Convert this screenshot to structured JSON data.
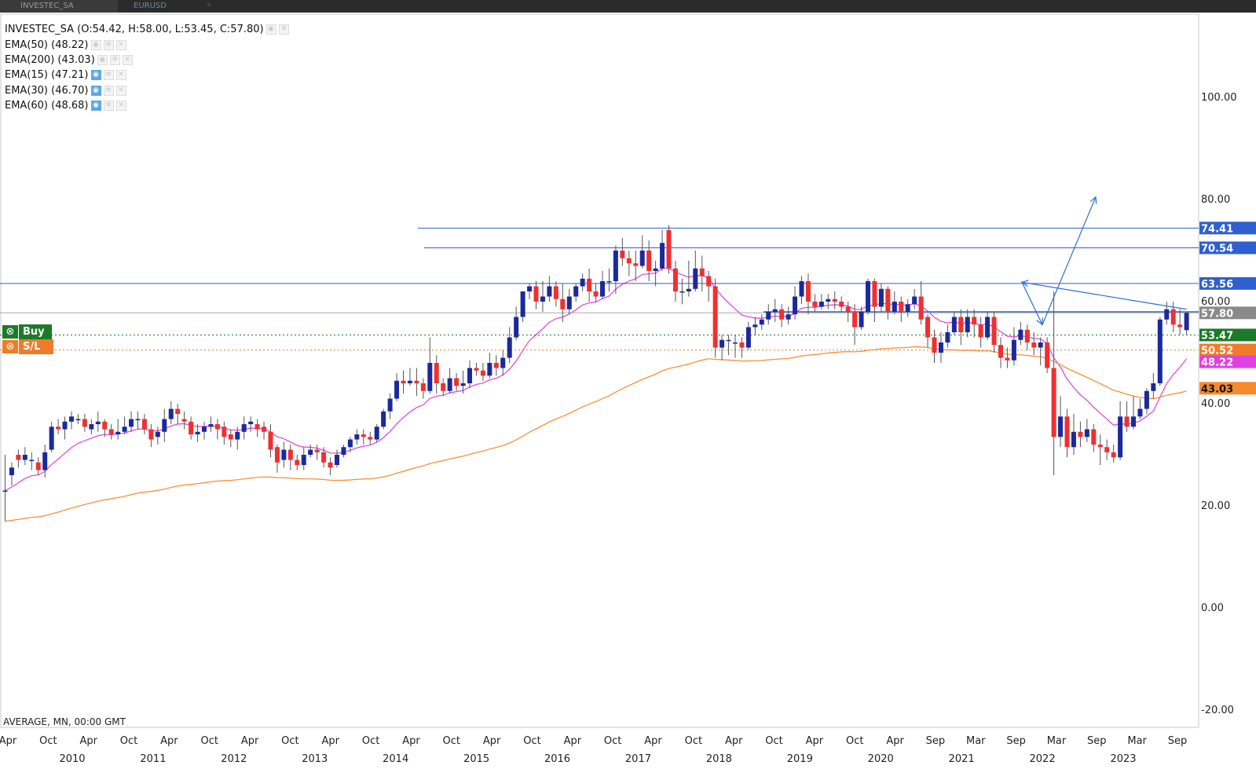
{
  "tabs": [
    {
      "label": "INVESTEC_SA",
      "active": true
    },
    {
      "label": "EURUSD",
      "active": false
    }
  ],
  "legend": {
    "main": "INVESTEC_SA (O:54.42, H:58.00, L:53.45, C:57.80)",
    "indicators": [
      {
        "label": "EMA(50) (48.22)",
        "eye_on": false,
        "color": "#e040e0"
      },
      {
        "label": "EMA(200) (43.03)",
        "eye_on": false,
        "color": "#f58a2e"
      },
      {
        "label": "EMA(15) (47.21)",
        "eye_on": true
      },
      {
        "label": "EMA(30) (46.70)",
        "eye_on": true
      },
      {
        "label": "EMA(60) (48.68)",
        "eye_on": true
      }
    ]
  },
  "trade_widget": {
    "buy_label": "Buy",
    "sl_label": "S/L",
    "buy_color": "#1d7a28",
    "sl_color": "#f07c2a"
  },
  "status_line": "AVERAGE, MN, 00:00 GMT",
  "chart_data": {
    "type": "candlestick",
    "symbol": "INVESTEC_SA",
    "timeframe": "MN",
    "ylim": [
      -20,
      120
    ],
    "y_ticks": [
      "100.00",
      "80.00",
      "40.00",
      "20.00",
      "0.00",
      "-20.00"
    ],
    "x_month_labels": [
      "Apr",
      "Oct",
      "Apr",
      "Oct",
      "Apr",
      "Oct",
      "Apr",
      "Oct",
      "Apr",
      "Oct",
      "Apr",
      "Oct",
      "Apr",
      "Oct",
      "Apr",
      "Oct",
      "Apr",
      "Oct",
      "Apr",
      "Oct",
      "Apr",
      "Oct",
      "Apr",
      "Sep",
      "Mar",
      "Sep",
      "Mar",
      "Sep",
      "Mar",
      "Sep"
    ],
    "x_year_labels": [
      "2010",
      "2011",
      "2012",
      "2013",
      "2014",
      "2015",
      "2016",
      "2017",
      "2018",
      "2019",
      "2020",
      "2021",
      "2022",
      "2023"
    ],
    "up_color": "#1a2a9c",
    "down_color": "#f03030",
    "candles": [
      [
        23.0,
        23.0,
        17.0,
        30.0
      ],
      [
        26.0,
        27.5,
        24.0,
        28.5
      ],
      [
        30.0,
        29.0,
        27.5,
        31.0
      ],
      [
        29.0,
        30.0,
        28.0,
        31.5
      ],
      [
        29.0,
        29.0,
        27.0,
        30.5
      ],
      [
        28.5,
        27.0,
        26.0,
        29.5
      ],
      [
        27.0,
        30.5,
        25.5,
        32.0
      ],
      [
        31.0,
        35.5,
        30.5,
        36.5
      ],
      [
        35.5,
        35.0,
        34.0,
        37.0
      ],
      [
        35.0,
        36.5,
        33.0,
        37.5
      ],
      [
        36.5,
        37.5,
        35.0,
        38.5
      ],
      [
        37.0,
        37.0,
        36.0,
        38.0
      ],
      [
        37.0,
        35.5,
        34.5,
        38.0
      ],
      [
        35.0,
        36.0,
        34.0,
        37.0
      ],
      [
        36.0,
        36.5,
        34.5,
        38.5
      ],
      [
        36.5,
        35.0,
        33.5,
        37.0
      ],
      [
        35.0,
        34.0,
        33.0,
        36.0
      ],
      [
        34.0,
        34.5,
        33.0,
        37.0
      ],
      [
        34.5,
        35.5,
        34.0,
        37.5
      ],
      [
        35.5,
        37.0,
        34.5,
        38.5
      ],
      [
        37.0,
        37.0,
        35.0,
        38.5
      ],
      [
        37.0,
        35.0,
        34.0,
        38.0
      ],
      [
        35.0,
        33.0,
        31.5,
        36.0
      ],
      [
        33.5,
        34.5,
        32.0,
        35.5
      ],
      [
        34.5,
        37.0,
        32.5,
        39.0
      ],
      [
        37.0,
        39.0,
        36.0,
        40.5
      ],
      [
        39.0,
        38.0,
        36.0,
        40.0
      ],
      [
        37.0,
        36.5,
        35.0,
        38.5
      ],
      [
        36.5,
        34.0,
        33.0,
        37.5
      ],
      [
        34.0,
        34.5,
        32.5,
        36.0
      ],
      [
        34.5,
        35.5,
        33.0,
        36.5
      ],
      [
        35.5,
        36.0,
        34.5,
        37.5
      ],
      [
        36.0,
        35.0,
        33.0,
        37.0
      ],
      [
        35.5,
        33.5,
        32.0,
        36.5
      ],
      [
        34.0,
        33.0,
        31.5,
        35.0
      ],
      [
        33.0,
        34.5,
        31.0,
        35.5
      ],
      [
        34.5,
        36.0,
        33.0,
        37.5
      ],
      [
        36.0,
        36.5,
        34.5,
        37.5
      ],
      [
        36.0,
        35.0,
        33.5,
        37.0
      ],
      [
        35.5,
        34.5,
        33.0,
        36.5
      ],
      [
        34.5,
        31.0,
        29.5,
        36.0
      ],
      [
        31.5,
        28.5,
        26.5,
        32.0
      ],
      [
        29.0,
        31.0,
        27.5,
        32.5
      ],
      [
        31.0,
        29.0,
        27.0,
        32.0
      ],
      [
        29.0,
        28.0,
        27.0,
        30.0
      ],
      [
        28.0,
        30.0,
        27.0,
        31.5
      ],
      [
        30.0,
        31.0,
        29.5,
        32.0
      ],
      [
        31.0,
        30.5,
        29.0,
        32.0
      ],
      [
        30.5,
        28.5,
        27.5,
        31.5
      ],
      [
        28.5,
        27.5,
        26.0,
        29.5
      ],
      [
        28.0,
        30.0,
        27.5,
        31.0
      ],
      [
        30.0,
        31.5,
        29.5,
        32.0
      ],
      [
        31.5,
        33.0,
        30.5,
        33.5
      ],
      [
        33.0,
        34.0,
        32.0,
        35.0
      ],
      [
        34.0,
        33.5,
        32.0,
        35.0
      ],
      [
        33.5,
        33.0,
        32.0,
        34.5
      ],
      [
        33.0,
        35.5,
        32.5,
        36.0
      ],
      [
        35.5,
        38.5,
        35.0,
        39.0
      ],
      [
        38.5,
        41.0,
        37.0,
        42.0
      ],
      [
        41.0,
        44.5,
        40.5,
        46.0
      ],
      [
        44.5,
        44.0,
        42.0,
        46.5
      ],
      [
        44.0,
        44.5,
        43.5,
        47.0
      ],
      [
        44.5,
        44.0,
        41.5,
        47.0
      ],
      [
        44.0,
        42.5,
        41.0,
        45.0
      ],
      [
        42.5,
        48.0,
        42.0,
        53.0
      ],
      [
        48.0,
        44.0,
        42.0,
        49.5
      ],
      [
        44.0,
        42.5,
        41.5,
        45.0
      ],
      [
        42.5,
        45.0,
        42.0,
        47.0
      ],
      [
        45.0,
        43.5,
        42.5,
        46.0
      ],
      [
        43.5,
        44.0,
        42.0,
        46.5
      ],
      [
        44.0,
        47.0,
        43.0,
        48.5
      ],
      [
        47.0,
        46.5,
        45.5,
        48.0
      ],
      [
        46.5,
        45.5,
        44.5,
        48.0
      ],
      [
        45.5,
        48.0,
        45.0,
        50.0
      ],
      [
        48.0,
        47.0,
        45.5,
        49.5
      ],
      [
        47.0,
        49.0,
        45.5,
        50.5
      ],
      [
        49.0,
        53.0,
        48.0,
        55.0
      ],
      [
        53.0,
        57.0,
        52.5,
        59.0
      ],
      [
        57.0,
        62.0,
        56.0,
        62.0
      ],
      [
        62.0,
        63.0,
        60.5,
        63.5
      ],
      [
        63.0,
        60.0,
        58.5,
        64.0
      ],
      [
        60.0,
        61.0,
        58.0,
        64.0
      ],
      [
        61.0,
        63.0,
        60.0,
        65.0
      ],
      [
        63.0,
        60.5,
        59.0,
        64.0
      ],
      [
        60.5,
        58.5,
        56.0,
        63.5
      ],
      [
        58.5,
        61.0,
        57.5,
        62.5
      ],
      [
        61.0,
        63.0,
        60.0,
        63.5
      ],
      [
        63.0,
        64.5,
        62.0,
        65.5
      ],
      [
        64.5,
        62.0,
        60.0,
        66.5
      ],
      [
        62.0,
        61.0,
        60.0,
        63.5
      ],
      [
        61.0,
        64.0,
        60.5,
        66.0
      ],
      [
        64.0,
        64.0,
        62.0,
        66.5
      ],
      [
        64.0,
        70.0,
        61.5,
        71.0
      ],
      [
        70.0,
        68.5,
        67.0,
        72.5
      ],
      [
        68.5,
        67.5,
        65.0,
        70.0
      ],
      [
        67.5,
        67.0,
        64.0,
        70.0
      ],
      [
        67.0,
        70.0,
        66.5,
        73.0
      ],
      [
        70.0,
        66.0,
        64.0,
        72.0
      ],
      [
        66.0,
        66.5,
        63.0,
        68.0
      ],
      [
        66.5,
        71.5,
        66.0,
        74.0
      ],
      [
        74.0,
        66.5,
        65.5,
        75.0
      ],
      [
        66.5,
        62.0,
        60.0,
        68.0
      ],
      [
        62.0,
        62.0,
        59.5,
        64.5
      ],
      [
        62.0,
        62.5,
        61.0,
        68.0
      ],
      [
        62.5,
        66.5,
        62.0,
        70.0
      ],
      [
        66.5,
        65.0,
        62.0,
        69.0
      ],
      [
        65.0,
        63.0,
        60.0,
        66.0
      ],
      [
        63.0,
        51.0,
        49.0,
        64.5
      ],
      [
        51.0,
        52.5,
        48.5,
        53.5
      ],
      [
        52.5,
        52.5,
        49.5,
        53.5
      ],
      [
        52.0,
        52.0,
        49.0,
        53.5
      ],
      [
        52.0,
        51.0,
        49.0,
        53.0
      ],
      [
        51.0,
        55.0,
        50.5,
        56.0
      ],
      [
        55.0,
        55.5,
        53.5,
        57.0
      ],
      [
        55.5,
        56.5,
        54.5,
        57.5
      ],
      [
        56.5,
        58.0,
        55.5,
        59.5
      ],
      [
        58.0,
        58.5,
        56.0,
        60.5
      ],
      [
        58.5,
        56.5,
        55.0,
        59.5
      ],
      [
        56.5,
        57.5,
        55.5,
        59.0
      ],
      [
        57.5,
        61.0,
        56.5,
        63.0
      ],
      [
        61.0,
        64.0,
        59.5,
        65.0
      ],
      [
        64.0,
        60.0,
        57.5,
        65.5
      ],
      [
        60.0,
        59.0,
        58.0,
        61.5
      ],
      [
        59.0,
        60.0,
        58.5,
        61.5
      ],
      [
        60.0,
        60.5,
        58.5,
        61.5
      ],
      [
        60.5,
        60.0,
        58.5,
        62.0
      ],
      [
        60.0,
        59.0,
        58.0,
        61.0
      ],
      [
        59.0,
        58.0,
        56.0,
        60.0
      ],
      [
        58.0,
        55.0,
        51.5,
        59.5
      ],
      [
        55.0,
        58.0,
        54.5,
        59.0
      ],
      [
        58.0,
        64.0,
        57.5,
        64.5
      ],
      [
        64.0,
        59.0,
        56.0,
        64.5
      ],
      [
        59.0,
        62.5,
        58.0,
        63.5
      ],
      [
        62.5,
        58.0,
        56.5,
        63.0
      ],
      [
        58.0,
        60.0,
        57.5,
        62.0
      ],
      [
        60.0,
        58.0,
        56.0,
        61.0
      ],
      [
        58.0,
        59.5,
        57.0,
        60.5
      ],
      [
        59.5,
        61.0,
        58.5,
        62.5
      ],
      [
        61.0,
        56.5,
        55.5,
        64.0
      ],
      [
        57.0,
        53.0,
        51.0,
        57.5
      ],
      [
        53.0,
        50.0,
        48.0,
        54.5
      ],
      [
        50.0,
        52.0,
        48.0,
        54.0
      ],
      [
        52.0,
        54.0,
        51.0,
        55.5
      ],
      [
        54.0,
        57.0,
        53.5,
        58.0
      ],
      [
        57.0,
        54.0,
        51.5,
        58.5
      ],
      [
        54.0,
        57.0,
        53.0,
        58.5
      ],
      [
        57.0,
        55.5,
        53.0,
        58.5
      ],
      [
        55.5,
        53.0,
        51.0,
        57.0
      ],
      [
        53.0,
        57.0,
        52.5,
        58.0
      ],
      [
        57.0,
        51.5,
        50.0,
        58.0
      ],
      [
        51.5,
        49.0,
        47.0,
        53.0
      ],
      [
        49.0,
        48.5,
        47.0,
        51.0
      ],
      [
        48.5,
        52.5,
        47.5,
        55.0
      ],
      [
        52.5,
        54.5,
        51.5,
        56.0
      ],
      [
        54.5,
        52.0,
        50.5,
        55.5
      ],
      [
        52.0,
        51.0,
        49.5,
        54.0
      ],
      [
        51.0,
        52.0,
        47.5,
        53.0
      ],
      [
        52.0,
        47.0,
        46.0,
        53.0
      ],
      [
        47.0,
        33.5,
        26.0,
        62.0
      ],
      [
        33.5,
        37.5,
        31.5,
        41.5
      ],
      [
        37.5,
        31.5,
        29.5,
        39.0
      ],
      [
        31.5,
        34.5,
        30.0,
        38.0
      ],
      [
        34.5,
        33.5,
        31.5,
        36.5
      ],
      [
        33.5,
        35.0,
        32.5,
        37.0
      ],
      [
        35.0,
        32.0,
        30.5,
        36.0
      ],
      [
        32.0,
        31.5,
        28.0,
        34.0
      ],
      [
        31.5,
        30.5,
        29.0,
        33.0
      ],
      [
        30.5,
        29.5,
        28.5,
        32.0
      ],
      [
        29.5,
        37.5,
        29.0,
        40.5
      ],
      [
        37.5,
        35.5,
        34.5,
        40.5
      ],
      [
        35.5,
        37.5,
        35.0,
        41.5
      ],
      [
        37.5,
        39.0,
        37.0,
        41.0
      ],
      [
        39.0,
        42.5,
        38.0,
        43.0
      ],
      [
        42.5,
        44.0,
        41.0,
        46.0
      ],
      [
        44.0,
        56.5,
        43.5,
        57.0
      ],
      [
        56.5,
        58.5,
        55.5,
        60.0
      ],
      [
        58.5,
        55.5,
        54.0,
        60.0
      ],
      [
        55.5,
        55.0,
        53.5,
        58.5
      ],
      [
        54.42,
        57.8,
        53.45,
        58.0
      ]
    ],
    "ema50_color": "#e040e0",
    "ema200_color": "#f58a2e",
    "hlines": [
      {
        "value": 74.41,
        "color": "#2f5fd0",
        "label": "74.41"
      },
      {
        "value": 70.54,
        "color": "#2f5fd0",
        "label": "70.54"
      },
      {
        "value": 63.56,
        "color": "#2f5fd0",
        "label": "63.56"
      },
      {
        "value": 58.0,
        "color": "#2f5fd0",
        "label": ""
      },
      {
        "value": 57.8,
        "color": "#aaaaaa",
        "label": "57.80"
      }
    ],
    "entry_line": {
      "value": 53.47,
      "color": "#1d7a28",
      "label": "53.47"
    },
    "stop_line": {
      "value": 50.52,
      "color": "#f07c2a",
      "label": "50.52"
    },
    "ema_labels": [
      {
        "value": 48.22,
        "label": "48.22",
        "color": "#e040e0"
      },
      {
        "value": 43.03,
        "label": "43.03",
        "color": "#f58a2e"
      }
    ],
    "hidden_tick_labels": [
      "60.00"
    ]
  }
}
